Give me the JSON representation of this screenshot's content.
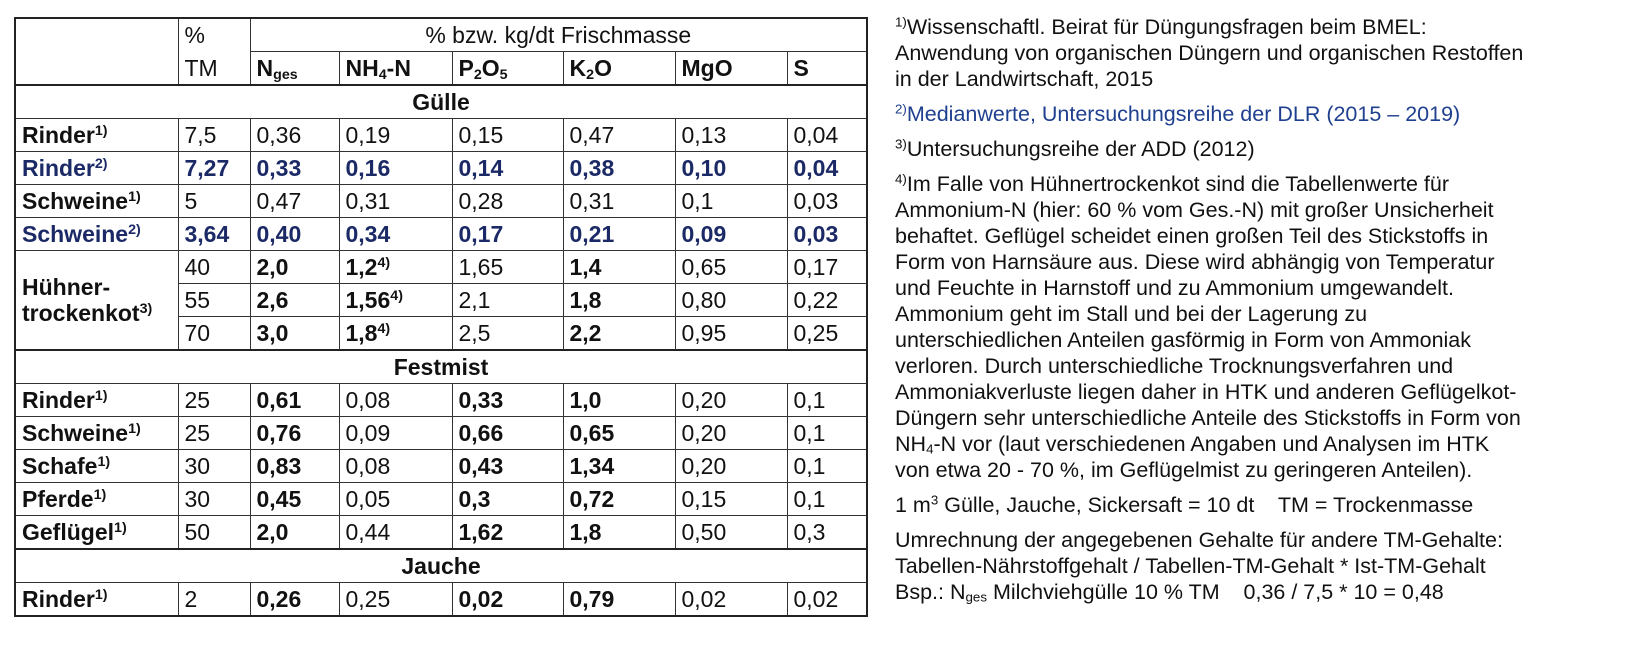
{
  "table": {
    "header": {
      "tm_top": "%",
      "group": "% bzw. kg/dt Frischmasse",
      "tm": "TM",
      "columns": [
        [
          {
            "text": "N"
          },
          {
            "text": "ges",
            "sub": true
          }
        ],
        [
          {
            "text": "NH"
          },
          {
            "text": "4",
            "sub": true
          },
          {
            "text": "-N"
          }
        ],
        [
          {
            "text": "P"
          },
          {
            "text": "2",
            "sub": true
          },
          {
            "text": "O"
          },
          {
            "text": "5",
            "sub": true
          }
        ],
        [
          {
            "text": "K"
          },
          {
            "text": "2",
            "sub": true
          },
          {
            "text": "O"
          }
        ],
        [
          {
            "text": "MgO"
          }
        ],
        [
          {
            "text": "S"
          }
        ]
      ]
    },
    "sections": [
      {
        "title": "Gülle",
        "rows": [
          {
            "label": [
              "Rinder"
            ],
            "note": "1)",
            "cells": [
              {
                "text": "7,5"
              },
              {
                "text": "0,36"
              },
              {
                "text": "0,19"
              },
              {
                "text": "0,15"
              },
              {
                "text": "0,47"
              },
              {
                "text": "0,13"
              },
              {
                "text": "0,04"
              }
            ]
          },
          {
            "label": [
              "Rinder"
            ],
            "note": "2)",
            "bold": true,
            "color": "#1b2a66",
            "cells": [
              {
                "text": "7,27"
              },
              {
                "text": "0,33"
              },
              {
                "text": "0,16"
              },
              {
                "text": "0,14"
              },
              {
                "text": "0,38"
              },
              {
                "text": "0,10"
              },
              {
                "text": "0,04"
              }
            ]
          },
          {
            "label": [
              "Schweine"
            ],
            "note": "1)",
            "cells": [
              {
                "text": "5"
              },
              {
                "text": "0,47"
              },
              {
                "text": "0,31"
              },
              {
                "text": "0,28"
              },
              {
                "text": "0,31"
              },
              {
                "text": "0,1"
              },
              {
                "text": "0,03"
              }
            ]
          },
          {
            "label": [
              "Schweine"
            ],
            "note": "2)",
            "bold": true,
            "color": "#1b2a66",
            "cells": [
              {
                "text": "3,64"
              },
              {
                "text": "0,40"
              },
              {
                "text": "0,34"
              },
              {
                "text": "0,17"
              },
              {
                "text": "0,21"
              },
              {
                "text": "0,09"
              },
              {
                "text": "0,03"
              }
            ]
          },
          {
            "label": [
              "Hühner-",
              "trockenkot"
            ],
            "note": "3)",
            "subrows": [
              {
                "cells": [
                  {
                    "text": "40"
                  },
                  {
                    "text": "2,0",
                    "bold": true
                  },
                  {
                    "text": "1,2",
                    "note": "4)",
                    "bold": true
                  },
                  {
                    "text": "1,65"
                  },
                  {
                    "text": "1,4",
                    "bold": true
                  },
                  {
                    "text": "0,65"
                  },
                  {
                    "text": "0,17"
                  }
                ]
              },
              {
                "cells": [
                  {
                    "text": "55"
                  },
                  {
                    "text": "2,6",
                    "bold": true
                  },
                  {
                    "text": "1,56",
                    "note": "4)",
                    "bold": true
                  },
                  {
                    "text": "2,1"
                  },
                  {
                    "text": "1,8",
                    "bold": true
                  },
                  {
                    "text": "0,80"
                  },
                  {
                    "text": "0,22"
                  }
                ]
              },
              {
                "cells": [
                  {
                    "text": "70"
                  },
                  {
                    "text": "3,0",
                    "bold": true
                  },
                  {
                    "text": "1,8",
                    "note": "4)",
                    "bold": true
                  },
                  {
                    "text": "2,5"
                  },
                  {
                    "text": "2,2",
                    "bold": true
                  },
                  {
                    "text": "0,95"
                  },
                  {
                    "text": "0,25"
                  }
                ]
              }
            ]
          }
        ]
      },
      {
        "title": "Festmist",
        "rows": [
          {
            "label": [
              "Rinder"
            ],
            "note": "1)",
            "cells": [
              {
                "text": "25"
              },
              {
                "text": "0,61",
                "bold": true
              },
              {
                "text": "0,08"
              },
              {
                "text": "0,33",
                "bold": true
              },
              {
                "text": "1,0",
                "bold": true
              },
              {
                "text": "0,20"
              },
              {
                "text": "0,1"
              }
            ]
          },
          {
            "label": [
              "Schweine"
            ],
            "note": "1)",
            "cells": [
              {
                "text": "25"
              },
              {
                "text": "0,76",
                "bold": true
              },
              {
                "text": "0,09"
              },
              {
                "text": "0,66",
                "bold": true
              },
              {
                "text": "0,65",
                "bold": true
              },
              {
                "text": "0,20"
              },
              {
                "text": "0,1"
              }
            ]
          },
          {
            "label": [
              "Schafe"
            ],
            "note": "1)",
            "cells": [
              {
                "text": "30"
              },
              {
                "text": "0,83",
                "bold": true
              },
              {
                "text": "0,08"
              },
              {
                "text": "0,43",
                "bold": true
              },
              {
                "text": "1,34",
                "bold": true
              },
              {
                "text": "0,20"
              },
              {
                "text": "0,1"
              }
            ]
          },
          {
            "label": [
              "Pferde"
            ],
            "note": "1)",
            "cells": [
              {
                "text": "30"
              },
              {
                "text": "0,45",
                "bold": true
              },
              {
                "text": "0,05"
              },
              {
                "text": "0,3",
                "bold": true
              },
              {
                "text": "0,72",
                "bold": true
              },
              {
                "text": "0,15"
              },
              {
                "text": "0,1"
              }
            ]
          },
          {
            "label": [
              "Geflügel"
            ],
            "note": "1)",
            "cells": [
              {
                "text": "50"
              },
              {
                "text": "2,0",
                "bold": true
              },
              {
                "text": "0,44"
              },
              {
                "text": "1,62",
                "bold": true
              },
              {
                "text": "1,8",
                "bold": true
              },
              {
                "text": "0,50"
              },
              {
                "text": "0,3"
              }
            ]
          }
        ]
      },
      {
        "title": "Jauche",
        "rows": [
          {
            "label": [
              "Rinder"
            ],
            "note": "1)",
            "cells": [
              {
                "text": "2"
              },
              {
                "text": "0,26",
                "bold": true
              },
              {
                "text": "0,25"
              },
              {
                "text": "0,02",
                "bold": true
              },
              {
                "text": "0,79",
                "bold": true
              },
              {
                "text": "0,02"
              },
              {
                "text": "0,02"
              }
            ]
          }
        ]
      }
    ]
  },
  "notes": [
    {
      "marker": "1)",
      "lines": [
        "Wissenschaftl. Beirat für Düngungsfragen beim BMEL:",
        "Anwendung von organischen Düngern und organischen Restoffen",
        "in der Landwirtschaft, 2015"
      ]
    },
    {
      "marker": "2)",
      "color": "#1f3f8f",
      "lines": [
        "Medianwerte, Untersuchungsreihe der DLR (2015 – 2019)"
      ]
    },
    {
      "marker": "3)",
      "lines": [
        "Untersuchungsreihe der ADD (2012)"
      ]
    },
    {
      "marker": "4)",
      "lines": [
        "Im Falle von Hühnertrockenkot sind die Tabellenwerte für",
        "Ammonium-N (hier: 60 % vom Ges.-N) mit großer Unsicherheit",
        "behaftet. Geflügel scheidet einen großen Teil des Stickstoffs in",
        "Form von Harnsäure aus. Diese wird abhängig von Temperatur",
        "und Feuchte in Harnstoff und zu Ammonium umgewandelt.",
        "Ammonium geht im Stall und bei der Lagerung zu",
        "unterschiedlichen Anteilen gasförmig in Form von Ammoniak",
        "verloren. Durch unterschiedliche Trocknungsverfahren und",
        "Ammoniakverluste liegen daher in HTK und anderen Geflügelkot-",
        "Düngern sehr unterschiedliche Anteile des Stickstoffs in Form von",
        [
          {
            "text": "NH"
          },
          {
            "text": "4",
            "sub": true
          },
          {
            "text": "-N vor (laut verschiedenen Angaben und Analysen im HTK"
          }
        ],
        "von etwa 20 - 70 %, im Geflügelmist zu geringeren Anteilen)."
      ]
    },
    {
      "lines": [
        [
          {
            "text": "1 m"
          },
          {
            "text": "3",
            "sup": true
          },
          {
            "text": " Gülle, Jauche, Sickersaft = 10 dt    TM = Trockenmasse"
          }
        ]
      ]
    },
    {
      "lines": [
        "Umrechnung der angegebenen Gehalte für andere TM-Gehalte:",
        "Tabellen-Nährstoffgehalt / Tabellen-TM-Gehalt * Ist-TM-Gehalt",
        [
          {
            "text": "Bsp.: N"
          },
          {
            "text": "ges",
            "sub": true
          },
          {
            "text": " Milchviehgülle 10 % TM    0,36 / 7,5 * 10 = 0,48"
          }
        ]
      ]
    }
  ]
}
